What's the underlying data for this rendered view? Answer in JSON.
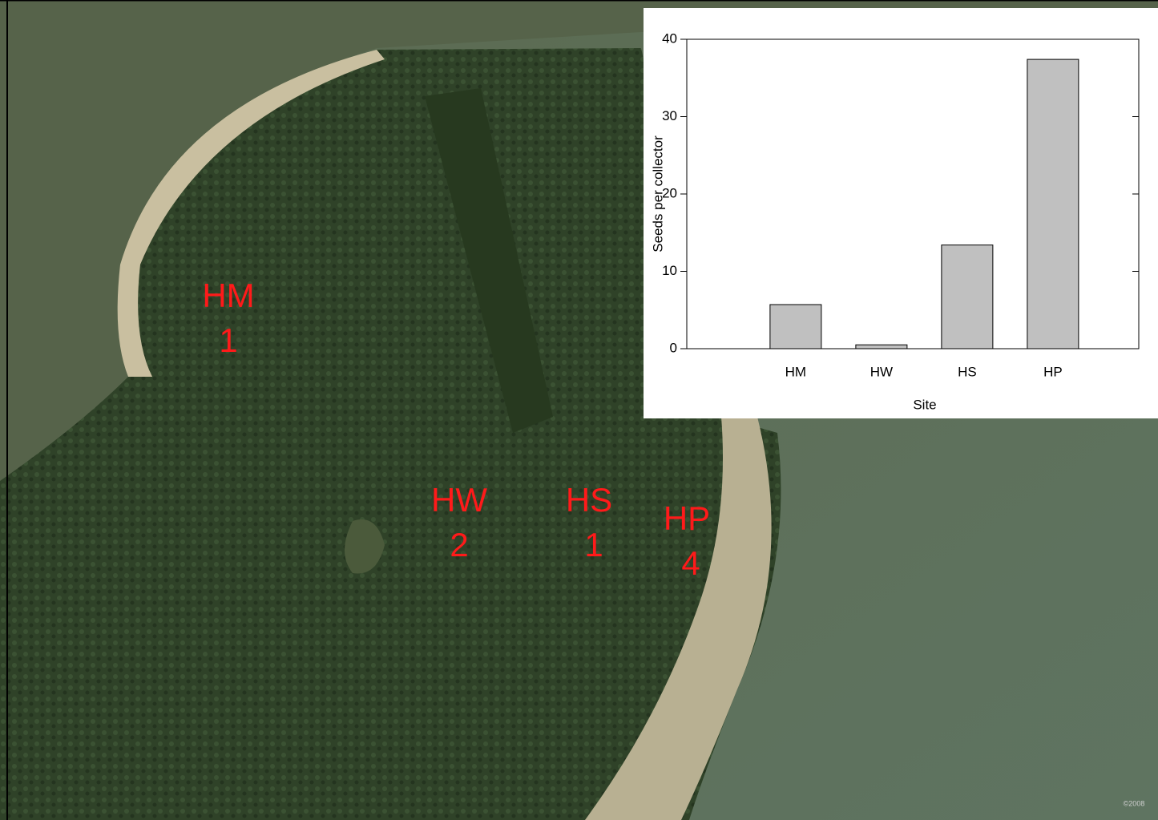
{
  "chart_data": {
    "type": "bar",
    "x_label": "Site",
    "y_label": "Seeds per collector",
    "categories": [
      "HM",
      "HW",
      "HS",
      "HP"
    ],
    "values": [
      5.7,
      0.5,
      13.4,
      37.4
    ],
    "color": "#c0c0c0",
    "ylim": [
      0,
      40
    ],
    "yticks": [
      0,
      10,
      20,
      30,
      40
    ],
    "grid": false
  },
  "map_labels": [
    {
      "site": "HM",
      "count": 1
    },
    {
      "site": "HW",
      "count": 2
    },
    {
      "site": "HS",
      "count": 1
    },
    {
      "site": "HP",
      "count": 4
    }
  ],
  "copyright": "©2008"
}
